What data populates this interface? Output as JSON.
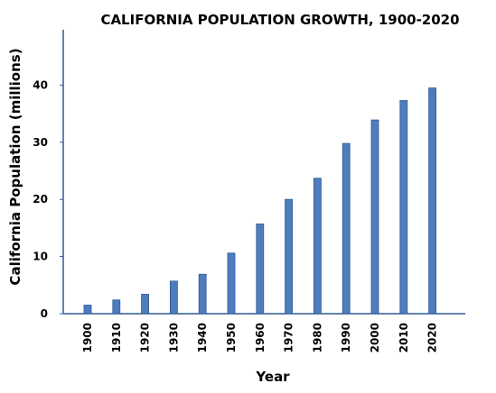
{
  "chart_data": {
    "type": "bar",
    "title": "CALIFORNIA POPULATION GROWTH, 1900-2020",
    "xlabel": "Year",
    "ylabel": "California Population (millions)",
    "categories": [
      "1900",
      "1910",
      "1920",
      "1930",
      "1940",
      "1950",
      "1960",
      "1970",
      "1980",
      "1990",
      "2000",
      "2010",
      "2020"
    ],
    "values": [
      1.5,
      2.4,
      3.4,
      5.7,
      6.9,
      10.6,
      15.7,
      20.0,
      23.7,
      29.8,
      33.9,
      37.3,
      39.5
    ],
    "yticks": [
      0,
      10,
      20,
      30,
      40
    ],
    "ylim": [
      0,
      50
    ],
    "grid": false,
    "legend": "none",
    "colors": {
      "bar": "#4F7CBD",
      "bar_edge": "#2E5A96",
      "axis": "#2E5A96"
    }
  }
}
